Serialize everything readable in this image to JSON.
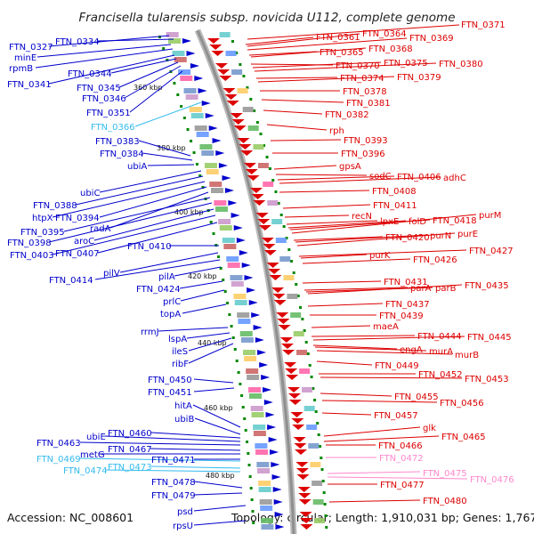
{
  "title": "Francisella tularensis subsp. novicida U112, complete genome",
  "accession": "Accession: NC_008601",
  "topology": "Topology: circular; Length: 1,910,031 bp; Genes: 1,767",
  "colors": {
    "left_gene": "#0000cc",
    "left_rna": "#33bbee",
    "right_gene": "#dd0000",
    "right_rna": "#ff88cc",
    "backbone": "#999999",
    "tick": "#008800"
  },
  "kbp_ticks": [
    "360 kbp",
    "380 kbp",
    "400 kbp",
    "420 kbp",
    "440 kbp",
    "460 kbp",
    "480 kbp"
  ],
  "left_labels": [
    "FTN_0327",
    "FTN_0334",
    "minE",
    "rpmB",
    "FTN_0341",
    "FTN_0344",
    "FTN_0345",
    "FTN_0346",
    "FTN_0351",
    "FTN_0366",
    "FTN_0383",
    "FTN_0384",
    "ubiA",
    "ubiC",
    "FTN_0388",
    "htpX",
    "FTN_0394",
    "radA",
    "FTN_0395",
    "FTN_0398",
    "aroC",
    "FTN_0410",
    "FTN_0403",
    "FTN_0407",
    "pilV",
    "FTN_0414",
    "pilA",
    "FTN_0424",
    "prlC",
    "topA",
    "rrmJ",
    "lspA",
    "ileS",
    "ribF",
    "FTN_0450",
    "FTN_0451",
    "hitA",
    "ubiB",
    "FTN_0460",
    "ubiE",
    "FTN_0463",
    "FTN_0467",
    "metG",
    "FTN_0469",
    "FTN_0471",
    "FTN_0473",
    "FTN_0474",
    "FTN_0478",
    "FTN_0479",
    "psd",
    "rpsU"
  ],
  "right_labels": [
    "FTN_0371",
    "FTN_0361",
    "FTN_0364",
    "FTN_0369",
    "FTN_0365",
    "FTN_0368",
    "FTN_0370",
    "FTN_0375",
    "FTN_0380",
    "FTN_0374",
    "FTN_0379",
    "FTN_0378",
    "FTN_0381",
    "FTN_0382",
    "rph",
    "FTN_0393",
    "FTN_0396",
    "gpsA",
    "sodC",
    "FTN_0406",
    "adhC",
    "FTN_0408",
    "FTN_0411",
    "recN",
    "lpxE",
    "folD",
    "FTN_0418",
    "purM",
    "FTN_0420",
    "purN",
    "purE",
    "FTN_0427",
    "purK",
    "FTN_0426",
    "FTN_0431",
    "parA",
    "parB",
    "FTN_0435",
    "FTN_0437",
    "FTN_0439",
    "maeA",
    "FTN_0444",
    "FTN_0445",
    "engA",
    "murA",
    "murB",
    "FTN_0449",
    "FTN_0452",
    "FTN_0453",
    "FTN_0455",
    "FTN_0456",
    "FTN_0457",
    "glk",
    "FTN_0465",
    "FTN_0466",
    "FTN_0472",
    "FTN_0475",
    "FTN_0476",
    "FTN_0477",
    "FTN_0480"
  ]
}
